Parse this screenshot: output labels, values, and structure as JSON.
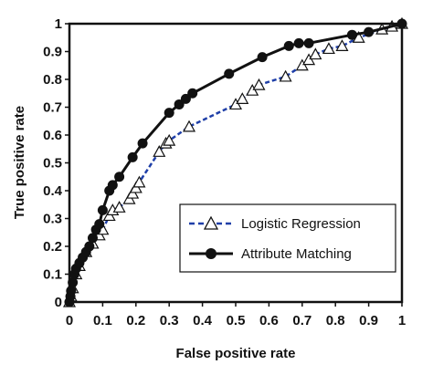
{
  "chart_data": {
    "type": "line",
    "xlabel": "False positive rate",
    "ylabel": "True positive rate",
    "xlim": [
      0,
      1
    ],
    "ylim": [
      0,
      1
    ],
    "xticks": [
      "0",
      "0.1",
      "0.2",
      "0.3",
      "0.4",
      "0.5",
      "0.6",
      "0.7",
      "0.8",
      "0.9",
      "1"
    ],
    "yticks": [
      "0",
      "0.1",
      "0.2",
      "0.3",
      "0.4",
      "0.5",
      "0.6",
      "0.7",
      "0.8",
      "0.9",
      "1"
    ],
    "grid": false,
    "legend_position": "lower-right",
    "series": [
      {
        "name": "Logistic Regression",
        "color": "#1f3fa8",
        "line_style": "dashed",
        "marker": "open-triangle",
        "points": [
          [
            0,
            0
          ],
          [
            0.005,
            0.02
          ],
          [
            0.01,
            0.05
          ],
          [
            0.02,
            0.1
          ],
          [
            0.03,
            0.13
          ],
          [
            0.05,
            0.18
          ],
          [
            0.07,
            0.21
          ],
          [
            0.09,
            0.24
          ],
          [
            0.1,
            0.26
          ],
          [
            0.12,
            0.31
          ],
          [
            0.13,
            0.33
          ],
          [
            0.15,
            0.34
          ],
          [
            0.18,
            0.37
          ],
          [
            0.19,
            0.39
          ],
          [
            0.2,
            0.41
          ],
          [
            0.21,
            0.43
          ],
          [
            0.27,
            0.54
          ],
          [
            0.29,
            0.57
          ],
          [
            0.3,
            0.58
          ],
          [
            0.36,
            0.63
          ],
          [
            0.5,
            0.71
          ],
          [
            0.52,
            0.73
          ],
          [
            0.55,
            0.76
          ],
          [
            0.57,
            0.78
          ],
          [
            0.65,
            0.81
          ],
          [
            0.7,
            0.85
          ],
          [
            0.72,
            0.87
          ],
          [
            0.74,
            0.89
          ],
          [
            0.78,
            0.91
          ],
          [
            0.82,
            0.92
          ],
          [
            0.87,
            0.95
          ],
          [
            0.94,
            0.98
          ],
          [
            0.97,
            0.99
          ],
          [
            1,
            1
          ]
        ]
      },
      {
        "name": "Attribute Matching",
        "color": "#111111",
        "line_style": "solid",
        "marker": "filled-circle",
        "points": [
          [
            0,
            0
          ],
          [
            0.003,
            0.02
          ],
          [
            0.005,
            0.04
          ],
          [
            0.01,
            0.07
          ],
          [
            0.015,
            0.1
          ],
          [
            0.02,
            0.12
          ],
          [
            0.03,
            0.14
          ],
          [
            0.04,
            0.16
          ],
          [
            0.05,
            0.18
          ],
          [
            0.06,
            0.2
          ],
          [
            0.07,
            0.23
          ],
          [
            0.08,
            0.26
          ],
          [
            0.09,
            0.28
          ],
          [
            0.1,
            0.33
          ],
          [
            0.12,
            0.4
          ],
          [
            0.13,
            0.42
          ],
          [
            0.15,
            0.45
          ],
          [
            0.19,
            0.52
          ],
          [
            0.22,
            0.57
          ],
          [
            0.3,
            0.68
          ],
          [
            0.33,
            0.71
          ],
          [
            0.35,
            0.73
          ],
          [
            0.37,
            0.75
          ],
          [
            0.48,
            0.82
          ],
          [
            0.58,
            0.88
          ],
          [
            0.66,
            0.92
          ],
          [
            0.69,
            0.93
          ],
          [
            0.72,
            0.93
          ],
          [
            0.85,
            0.96
          ],
          [
            0.9,
            0.97
          ],
          [
            1,
            1
          ]
        ]
      }
    ]
  }
}
